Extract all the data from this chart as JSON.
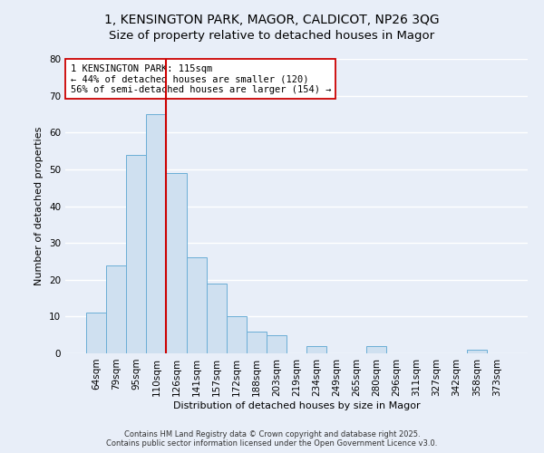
{
  "title": "1, KENSINGTON PARK, MAGOR, CALDICOT, NP26 3QG",
  "subtitle": "Size of property relative to detached houses in Magor",
  "xlabel": "Distribution of detached houses by size in Magor",
  "ylabel": "Number of detached properties",
  "bar_labels": [
    "64sqm",
    "79sqm",
    "95sqm",
    "110sqm",
    "126sqm",
    "141sqm",
    "157sqm",
    "172sqm",
    "188sqm",
    "203sqm",
    "219sqm",
    "234sqm",
    "249sqm",
    "265sqm",
    "280sqm",
    "296sqm",
    "311sqm",
    "327sqm",
    "342sqm",
    "358sqm",
    "373sqm"
  ],
  "bar_values": [
    11,
    24,
    54,
    65,
    49,
    26,
    19,
    10,
    6,
    5,
    0,
    2,
    0,
    0,
    2,
    0,
    0,
    0,
    0,
    1,
    0
  ],
  "bar_color": "#cfe0f0",
  "bar_edgecolor": "#6baed6",
  "vline_x": 3.5,
  "vline_color": "#cc0000",
  "ylim": [
    0,
    80
  ],
  "yticks": [
    0,
    10,
    20,
    30,
    40,
    50,
    60,
    70,
    80
  ],
  "annotation_line1": "1 KENSINGTON PARK: 115sqm",
  "annotation_line2": "← 44% of detached houses are smaller (120)",
  "annotation_line3": "56% of semi-detached houses are larger (154) →",
  "annotation_box_facecolor": "#ffffff",
  "annotation_box_edgecolor": "#cc0000",
  "footer1": "Contains HM Land Registry data © Crown copyright and database right 2025.",
  "footer2": "Contains public sector information licensed under the Open Government Licence v3.0.",
  "bg_color": "#e8eef8",
  "plot_bg_color": "#e8eef8",
  "grid_color": "#ffffff",
  "title_fontsize": 10,
  "axis_label_fontsize": 8,
  "tick_fontsize": 7.5,
  "annotation_fontsize": 7.5,
  "footer_fontsize": 6
}
